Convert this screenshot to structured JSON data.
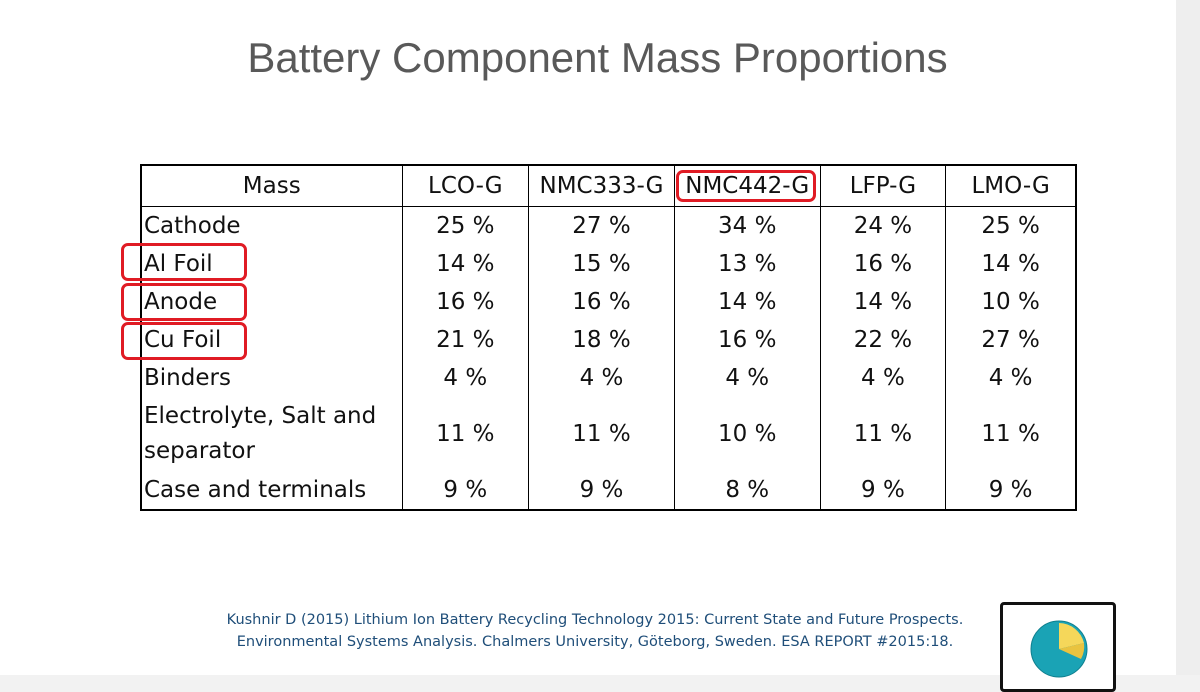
{
  "title": "Battery Component Mass Proportions",
  "table": {
    "headers": [
      "Mass",
      "LCO-G",
      "NMC333-G",
      "NMC442-G",
      "LFP-G",
      "LMO-G"
    ],
    "rows": [
      {
        "label": "Cathode",
        "values": [
          "25 %",
          "27 %",
          "34 %",
          "24 %",
          "25 %"
        ]
      },
      {
        "label": "Al Foil",
        "values": [
          "14 %",
          "15 %",
          "13 %",
          "16 %",
          "14 %"
        ]
      },
      {
        "label": "Anode",
        "values": [
          "16 %",
          "16 %",
          "14 %",
          "14 %",
          "10 %"
        ]
      },
      {
        "label": "Cu Foil",
        "values": [
          "21 %",
          "18 %",
          "16 %",
          "22 %",
          "27 %"
        ]
      },
      {
        "label": "Binders",
        "values": [
          "4 %",
          "4 %",
          "4 %",
          "4 %",
          "4 %"
        ]
      },
      {
        "label": "Electrolyte, Salt and separator",
        "values": [
          "11 %",
          "11 %",
          "10 %",
          "11 %",
          "11 %"
        ]
      },
      {
        "label": "Case and terminals",
        "values": [
          "9 %",
          "9 %",
          "8 %",
          "9 %",
          "9 %"
        ]
      }
    ]
  },
  "highlights": [
    "NMC442-G",
    "Al Foil",
    "Anode",
    "Cu Foil"
  ],
  "citation": {
    "line1": "Kushnir D (2015) Lithium Ion  Battery Recycling Technology 2015: Current State and Future Prospects.",
    "line2": "Environmental Systems Analysis. Chalmers University, Göteborg, Sweden. ESA REPORT #2015:18."
  },
  "colors": {
    "title": "#595959",
    "highlight": "#e01b24",
    "citation": "#1f4e79",
    "logo_teal": "#1aa3b5",
    "logo_yellow": "#f5d75a"
  },
  "logo": {
    "icon": "sphere-segment-icon"
  }
}
